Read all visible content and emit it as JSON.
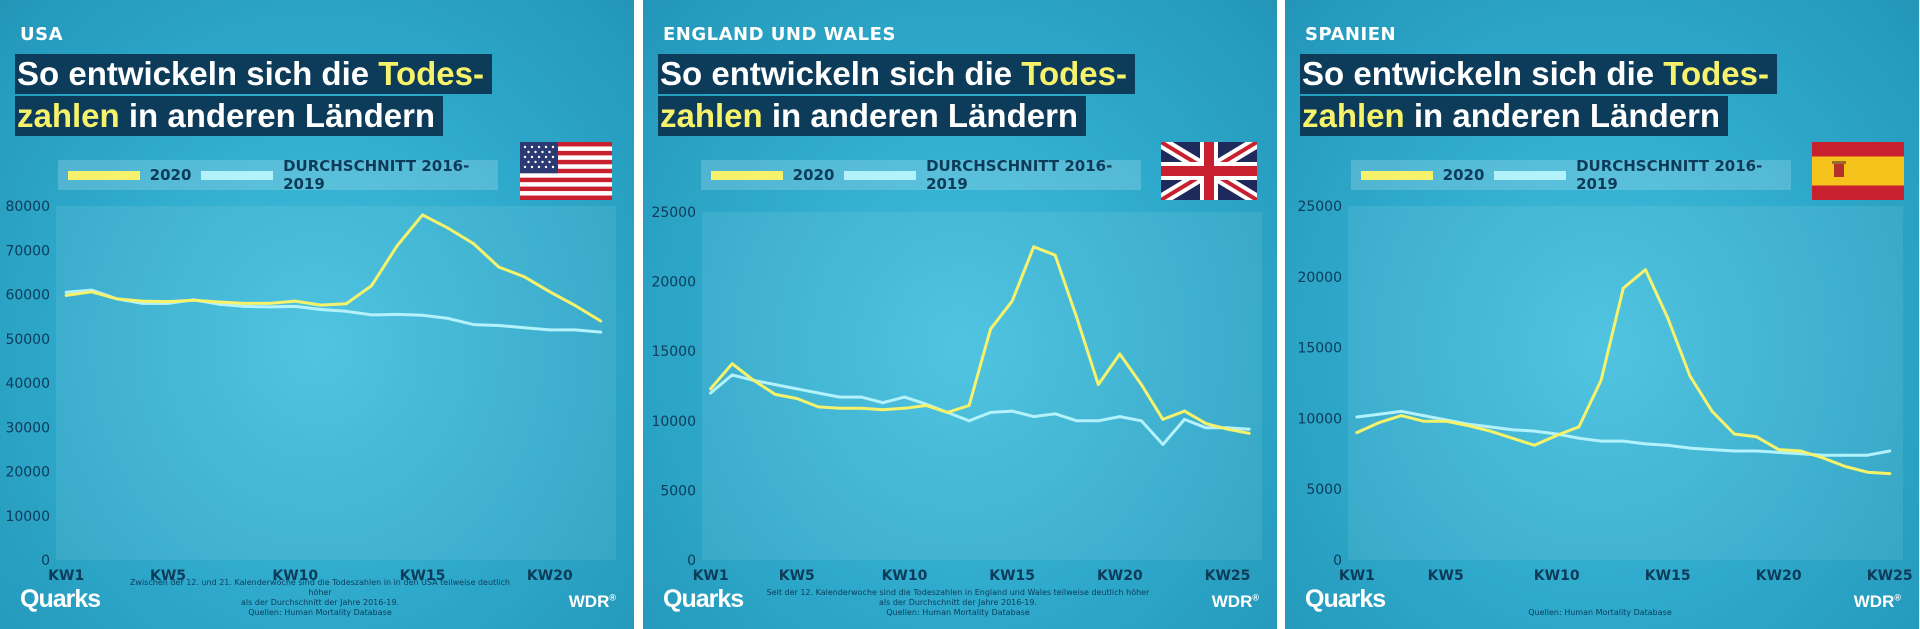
{
  "headline": {
    "line1_prefix": "So entwickeln sich die ",
    "line1_highlight": "Todes-",
    "line2_highlight": "zahlen",
    "line2_suffix": " in anderen Ländern"
  },
  "legend": {
    "series_2020": "2020",
    "series_avg": "DURCHSCHNITT 2016-2019"
  },
  "branding": {
    "quarks": "Quarks",
    "wdr": "WDR",
    "wdr_reg": "®"
  },
  "colors": {
    "series_2020": "#f6f26b",
    "series_avg": "#b3f2fb",
    "axis_text": "#0d3b5a",
    "background": "#34b3d4"
  },
  "icons": [
    "usa-flag-icon",
    "uk-flag-icon",
    "spain-flag-icon"
  ],
  "panels": [
    {
      "country": "USA",
      "flag": "usa-flag-icon",
      "note_lines": [
        "Zwischen der 12. und 21. Kalenderwoche sind die Todeszahlen in in den USA teilweise deutlich höher",
        "als der Durchschnitt der Jahre 2016-19.",
        "Quellen: Human Mortality Database"
      ]
    },
    {
      "country": "ENGLAND UND WALES",
      "flag": "uk-flag-icon",
      "note_lines": [
        "Seit der 12. Kalenderwoche sind die Todeszahlen in England und Wales teilweise deutlich höher",
        "als der Durchschnitt der Jahre 2016-19.",
        "Quellen: Human Mortality Database"
      ]
    },
    {
      "country": "SPANIEN",
      "flag": "spain-flag-icon",
      "note_lines": [
        "Quellen: Human Mortality Database"
      ]
    }
  ],
  "chart_data": [
    {
      "type": "line",
      "title": "USA",
      "x": [
        1,
        2,
        3,
        4,
        5,
        6,
        7,
        8,
        9,
        10,
        11,
        12,
        13,
        14,
        15,
        16,
        17,
        18,
        19,
        20,
        21,
        22
      ],
      "xticks": [
        1,
        5,
        10,
        15,
        20
      ],
      "xtick_labels": [
        "KW1",
        "KW5",
        "KW10",
        "KW15",
        "KW20"
      ],
      "xlim": [
        0.6,
        22.6
      ],
      "ylim": [
        0,
        80000
      ],
      "yticks": [
        0,
        10000,
        20000,
        30000,
        40000,
        50000,
        60000,
        70000,
        80000
      ],
      "series": [
        {
          "name": "2020",
          "values": [
            59800,
            60600,
            59000,
            58500,
            58400,
            58700,
            58300,
            58000,
            58000,
            58500,
            57600,
            57900,
            62000,
            71000,
            78000,
            75000,
            71500,
            66200,
            64000,
            60600,
            57500,
            54000
          ]
        },
        {
          "name": "DURCHSCHNITT 2016-2019",
          "values": [
            60500,
            61000,
            59000,
            58000,
            58000,
            58800,
            57800,
            57300,
            57200,
            57300,
            56600,
            56200,
            55400,
            55500,
            55300,
            54600,
            53200,
            53000,
            52500,
            52000,
            52000,
            51500
          ]
        }
      ]
    },
    {
      "type": "line",
      "title": "ENGLAND UND WALES",
      "x": [
        1,
        2,
        3,
        4,
        5,
        6,
        7,
        8,
        9,
        10,
        11,
        12,
        13,
        14,
        15,
        16,
        17,
        18,
        19,
        20,
        21,
        22,
        23,
        24,
        25,
        26
      ],
      "xticks": [
        1,
        5,
        10,
        15,
        20,
        25
      ],
      "xtick_labels": [
        "KW1",
        "KW5",
        "KW10",
        "KW15",
        "KW20",
        "KW25"
      ],
      "xlim": [
        0.6,
        26.6
      ],
      "ylim": [
        0,
        25000
      ],
      "yticks": [
        0,
        5000,
        10000,
        15000,
        20000,
        25000
      ],
      "series": [
        {
          "name": "2020",
          "values": [
            12300,
            14100,
            12900,
            11900,
            11600,
            11000,
            10900,
            10900,
            10800,
            10900,
            11100,
            10600,
            11100,
            16600,
            18600,
            22500,
            21900,
            17400,
            12600,
            14800,
            12600,
            10100,
            10700,
            9800,
            9400,
            9100
          ]
        },
        {
          "name": "DURCHSCHNITT 2016-2019",
          "values": [
            12000,
            13300,
            12900,
            12600,
            12300,
            12000,
            11700,
            11700,
            11300,
            11700,
            11200,
            10600,
            10000,
            10600,
            10700,
            10300,
            10500,
            10000,
            10000,
            10300,
            10000,
            8300,
            10100,
            9500,
            9500,
            9400
          ]
        }
      ]
    },
    {
      "type": "line",
      "title": "SPANIEN",
      "x": [
        1,
        2,
        3,
        4,
        5,
        6,
        7,
        8,
        9,
        10,
        11,
        12,
        13,
        14,
        15,
        16,
        17,
        18,
        19,
        20,
        21,
        22,
        23,
        24,
        25
      ],
      "xticks": [
        1,
        5,
        10,
        15,
        20,
        25
      ],
      "xtick_labels": [
        "KW1",
        "KW5",
        "KW10",
        "KW15",
        "KW20",
        "KW25"
      ],
      "xlim": [
        0.6,
        25.6
      ],
      "ylim": [
        0,
        25000
      ],
      "yticks": [
        0,
        5000,
        10000,
        15000,
        20000,
        25000
      ],
      "series": [
        {
          "name": "2020",
          "values": [
            9000,
            9700,
            10200,
            9800,
            9800,
            9500,
            9100,
            8600,
            8100,
            8800,
            9400,
            12700,
            19200,
            20500,
            17100,
            13000,
            10500,
            8900,
            8700,
            7800,
            7700,
            7200,
            6600,
            6200,
            6100
          ]
        },
        {
          "name": "DURCHSCHNITT 2016-2019",
          "values": [
            10100,
            10300,
            10500,
            10200,
            9900,
            9600,
            9400,
            9200,
            9100,
            8900,
            8600,
            8400,
            8400,
            8200,
            8100,
            7900,
            7800,
            7700,
            7700,
            7600,
            7500,
            7400,
            7400,
            7400,
            7700
          ]
        }
      ]
    }
  ]
}
